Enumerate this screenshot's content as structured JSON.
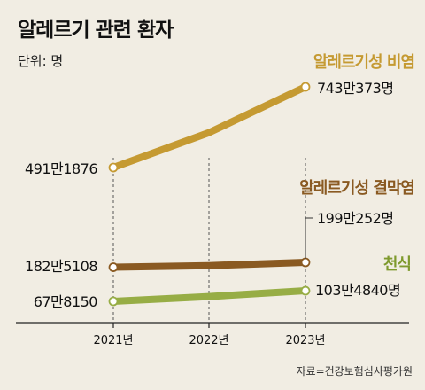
{
  "title": "알레르기 관련 환자",
  "unit": "단위: 명",
  "source": "자료=건강보험심사평가원",
  "colors": {
    "background": "#f1ede3",
    "rhinitis": "#c59a32",
    "conjunctivitis": "#8a5a22",
    "asthma": "#97ad45",
    "rhinitis_label": "#c59a32",
    "conjunctivitis_label": "#8a5a22",
    "asthma_label": "#7f9a2e",
    "axis": "#222222"
  },
  "chart_data": {
    "type": "line",
    "title": "알레르기 관련 환자",
    "xlabel": "",
    "ylabel": "",
    "categories": [
      "2021년",
      "2022년",
      "2023년"
    ],
    "series": [
      {
        "name": "알레르기성 비염",
        "key": "rhinitis",
        "values": [
          4911876,
          6000000,
          7430373
        ],
        "start_label": "491만1876",
        "end_label": "743만373명"
      },
      {
        "name": "알레르기성 결막염",
        "key": "conjunctivitis",
        "values": [
          1825108,
          1880000,
          1990252
        ],
        "start_label": "182만5108",
        "end_label": "199만252명"
      },
      {
        "name": "천식",
        "key": "asthma",
        "values": [
          678150,
          840000,
          1034840
        ],
        "start_label": "67만8150",
        "end_label": "103만4840명"
      }
    ]
  }
}
